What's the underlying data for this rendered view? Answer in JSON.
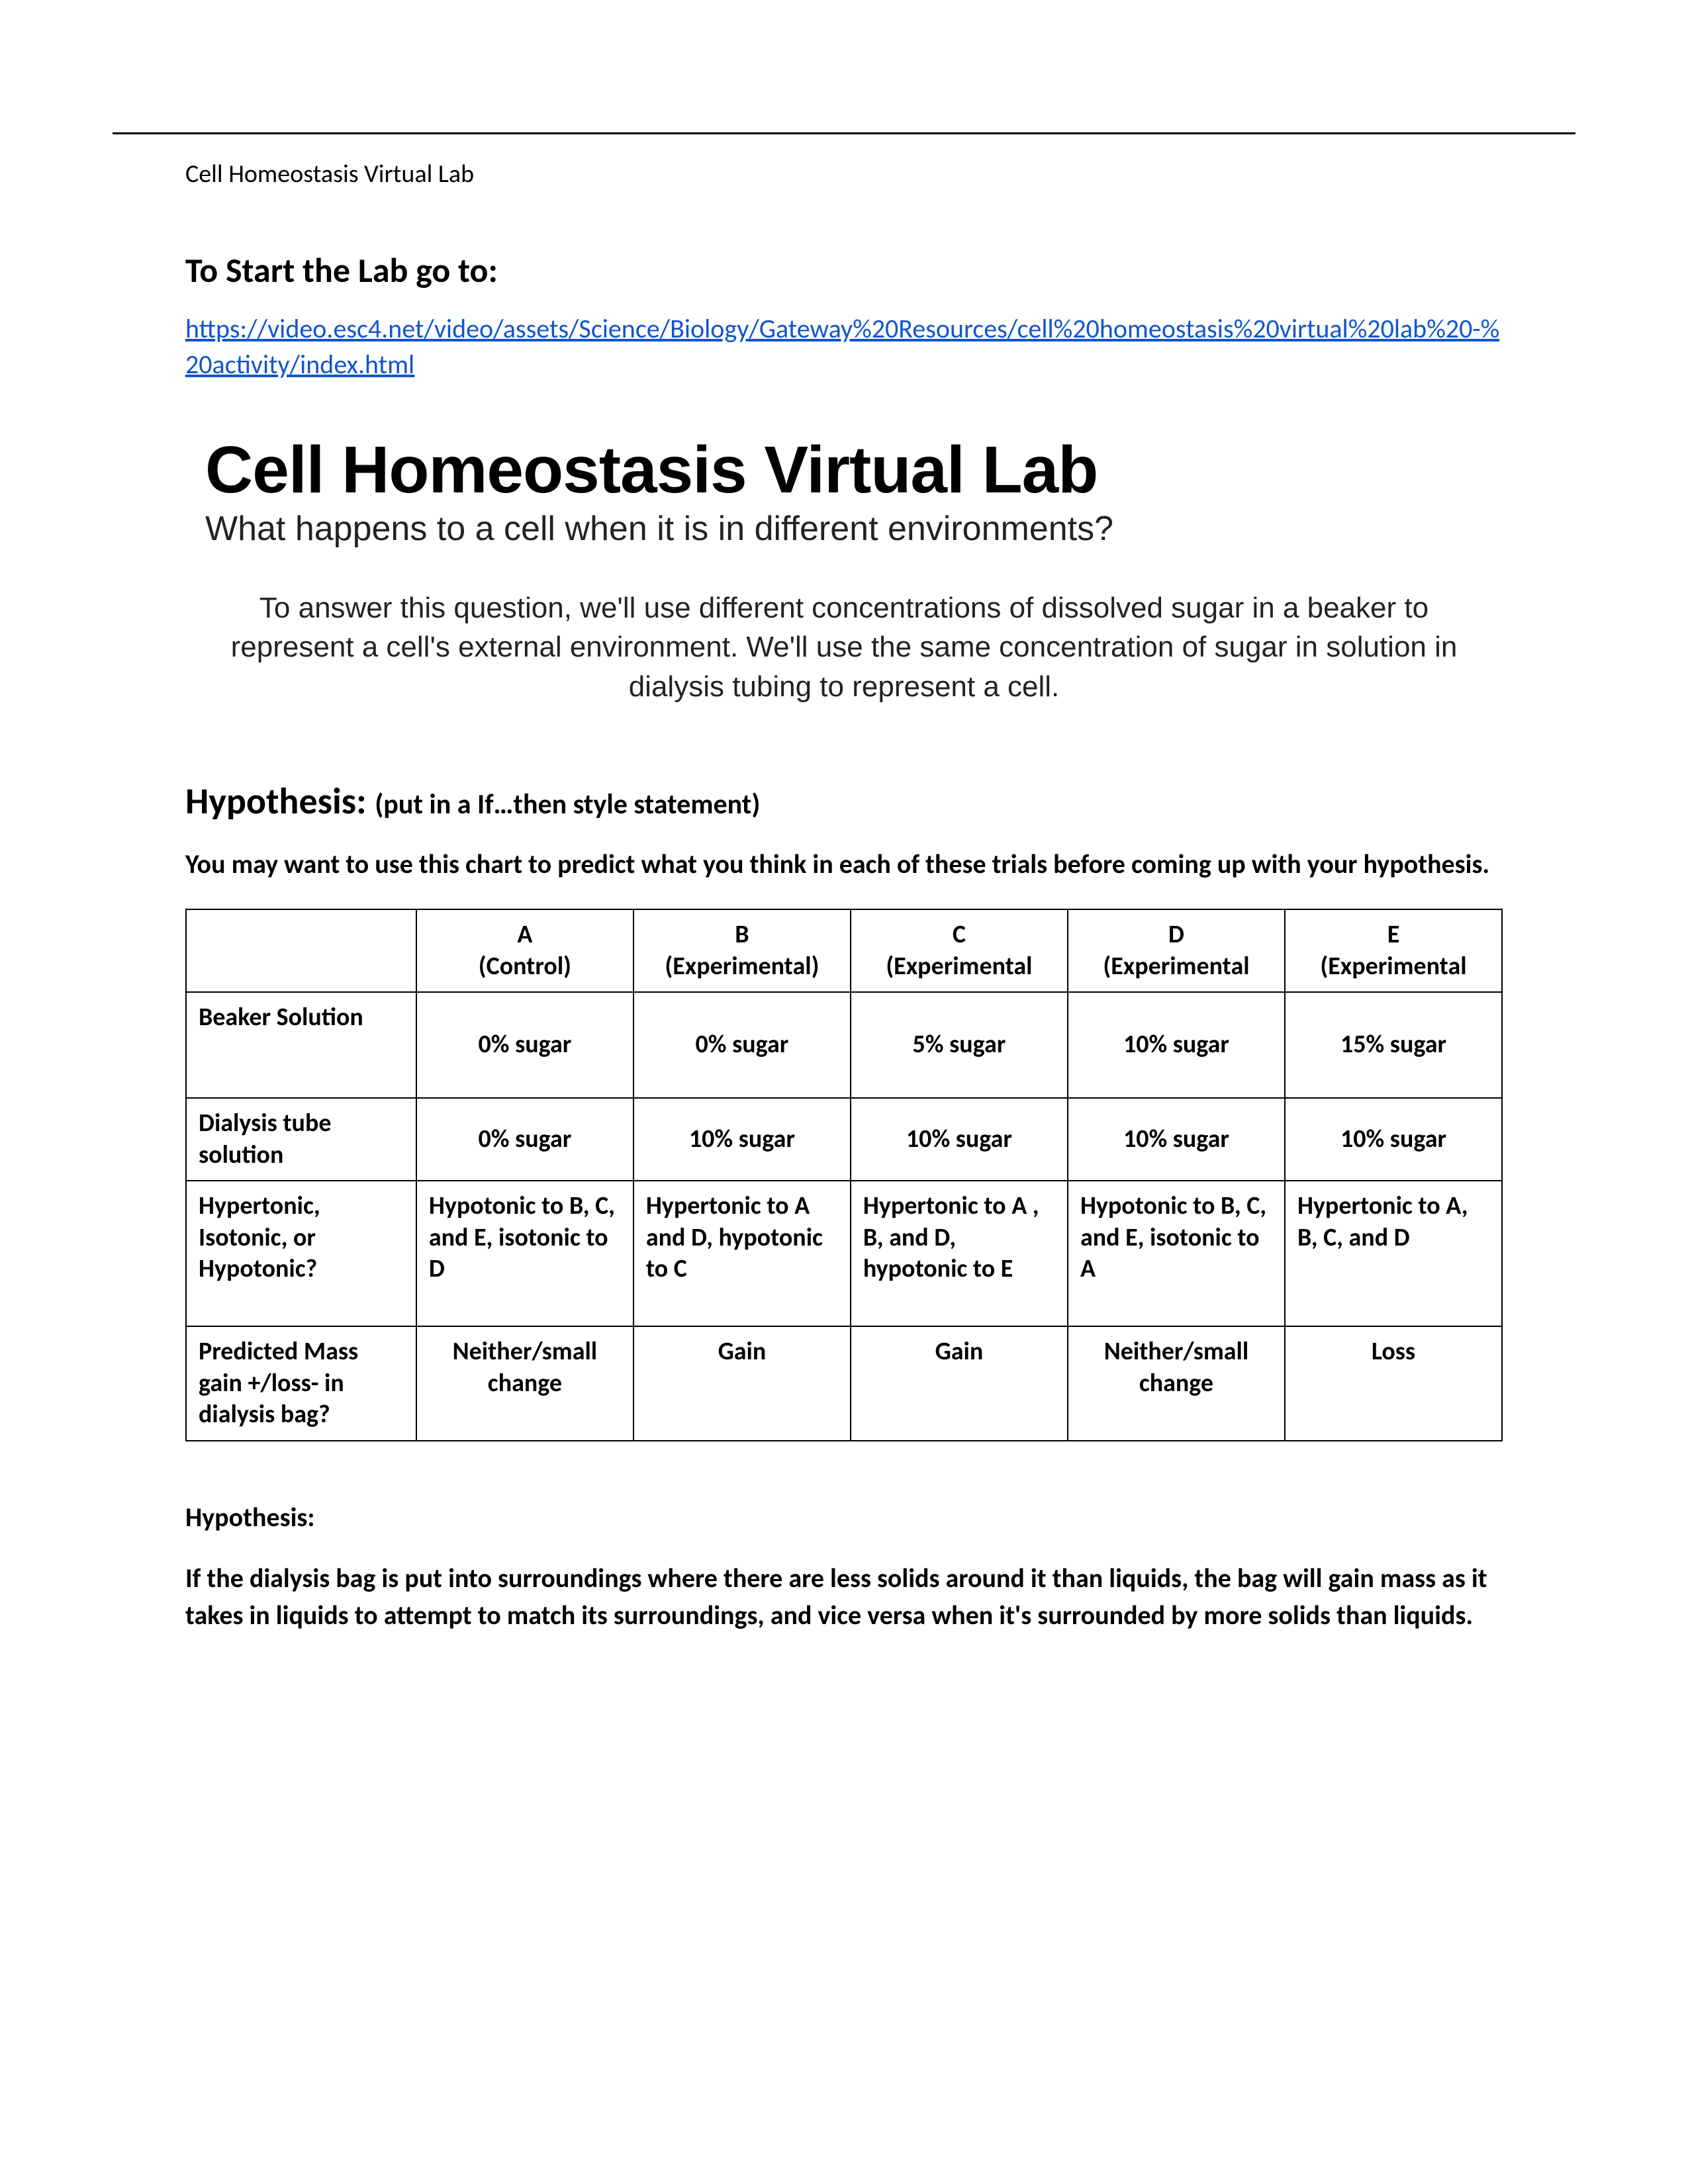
{
  "running_head": "Cell Homeostasis Virtual Lab",
  "start_heading": "To Start the Lab go to:",
  "link_text": "https://video.esc4.net/video/assets/Science/Biology/Gateway%20Resources/cell%20homeostasis%20virtual%20lab%20-%20activity/index.html",
  "embed": {
    "title": "Cell Homeostasis Virtual Lab",
    "subtitle": "What happens to a cell when it is in different environments?",
    "body": "To answer this question, we'll use different concentrations of dissolved sugar in a beaker to represent a cell's external environment. We'll use the same concentration of sugar in solution in dialysis tubing to represent a cell."
  },
  "hypothesis_heading_big": "Hypothesis: ",
  "hypothesis_heading_small": "(put in a If…then style statement)",
  "chart_intro": "You may want to use this chart to predict what you think in each of these trials before coming up with your hypothesis.",
  "table": {
    "columns": [
      "",
      "A\n(Control)",
      "B\n(Experimental)",
      "C\n(Experimental",
      "D\n(Experimental",
      "E\n(Experimental"
    ],
    "rows": [
      {
        "label": "Beaker Solution",
        "cells": [
          "0% sugar",
          "0% sugar",
          "5% sugar",
          "10% sugar",
          "15% sugar"
        ],
        "align": "center",
        "rowclass": "mid"
      },
      {
        "label": "Dialysis tube solution",
        "cells": [
          "0% sugar",
          "10% sugar",
          "10% sugar",
          "10% sugar",
          "10% sugar"
        ],
        "align": "center",
        "rowclass": ""
      },
      {
        "label": "Hypertonic, Isotonic, or Hypotonic?",
        "cells": [
          "Hypotonic to B, C, and E, isotonic to D",
          "Hypertonic to A and D, hypotonic to C",
          "Hypertonic to A , B, and D, hypotonic to E",
          "Hypotonic to B, C, and E, isotonic to A",
          "Hypertonic to A, B, C, and D"
        ],
        "align": "left",
        "rowclass": "tall"
      },
      {
        "label": "Predicted Mass gain +/loss- in dialysis bag?",
        "cells": [
          "Neither/small change",
          "Gain",
          "Gain",
          "Neither/small change",
          "Loss"
        ],
        "align": "center-top",
        "rowclass": "mid"
      }
    ]
  },
  "hypothesis_label": "Hypothesis:",
  "hypothesis_text": "If the dialysis bag is put into surroundings where there are less solids around it than liquids, the bag will gain mass as it takes in liquids to attempt to match its surroundings, and vice versa when it's surrounded by more solids than liquids."
}
